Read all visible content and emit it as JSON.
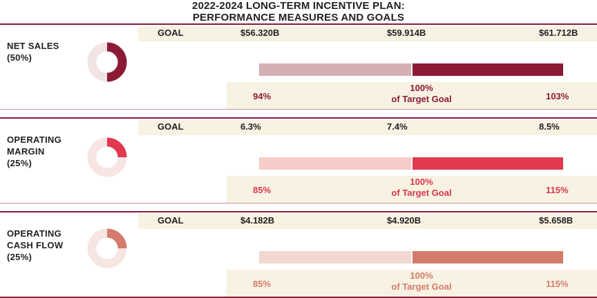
{
  "header": {
    "title_line1": "2022-2024 LONG-TERM INCENTIVE PLAN:",
    "title_line2": "PERFORMANCE MEASURES AND GOALS"
  },
  "goal_label": "GOAL",
  "sections": [
    {
      "label_lines": [
        "NET SALES",
        "(50%)"
      ],
      "weight_percent": 50,
      "goals": {
        "low": "$56.320B",
        "target": "$59.914B",
        "high": "$61.712B"
      },
      "payout": {
        "low": "94%",
        "target": "100%",
        "target_caption": "of Target Goal",
        "high": "103%"
      },
      "colors": {
        "accent": "#8c1a35",
        "light": "#d4b0b3",
        "ring": "#f2e4e4",
        "text": "#8c1a35"
      }
    },
    {
      "label_lines": [
        "OPERATING",
        "MARGIN",
        "(25%)"
      ],
      "weight_percent": 25,
      "goals": {
        "low": "6.3%",
        "target": "7.4%",
        "high": "8.5%"
      },
      "payout": {
        "low": "85%",
        "target": "100%",
        "target_caption": "of Target Goal",
        "high": "115%"
      },
      "colors": {
        "accent": "#e13a50",
        "light": "#f6cbc8",
        "ring": "#f7e5e3",
        "text": "#d9364c"
      }
    },
    {
      "label_lines": [
        "OPERATING",
        "CASH FLOW",
        "(25%)"
      ],
      "weight_percent": 25,
      "goals": {
        "low": "$4.182B",
        "target": "$4.920B",
        "high": "$5.658B"
      },
      "payout": {
        "low": "85%",
        "target": "100%",
        "target_caption": "of Target Goal",
        "high": "115%"
      },
      "colors": {
        "accent": "#d47b6b",
        "light": "#f2d8d1",
        "ring": "#f6e6e2",
        "text": "#d47b6b"
      }
    }
  ]
}
